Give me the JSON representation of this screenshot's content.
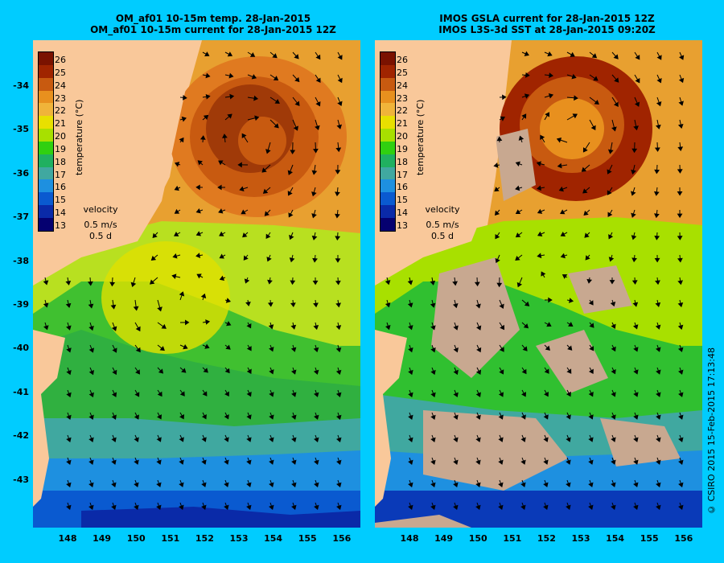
{
  "left_panel": {
    "title_line1": "OM_af01 10-15m temp. 28-Jan-2015",
    "title_line2": "OM_af01 10-15m current for 28-Jan-2015 12Z"
  },
  "right_panel": {
    "title_line1": "IMOS GSLA current for 28-Jan-2015 12Z",
    "title_line2": "IMOS L3S-3d SST at 28-Jan-2015 09:20Z"
  },
  "colorbar": {
    "title": "temperature (°C)",
    "ticks": [
      "26",
      "25",
      "24",
      "23",
      "22",
      "21",
      "20",
      "19",
      "18",
      "17",
      "16",
      "15",
      "14",
      "13"
    ],
    "colors": [
      "#7a1200",
      "#a02400",
      "#c85a10",
      "#e8901e",
      "#f0b43a",
      "#e8e000",
      "#a8e000",
      "#30d010",
      "#20b060",
      "#40a8a0",
      "#1e90e0",
      "#0a5ad0",
      "#0a2aa8",
      "#050070"
    ]
  },
  "velocity_key": {
    "label": "velocity",
    "speed": "0.5 m/s",
    "duration": "0.5 d"
  },
  "axes": {
    "lat_labels": [
      "-34",
      "-35",
      "-36",
      "-37",
      "-38",
      "-39",
      "-40",
      "-41",
      "-42",
      "-43"
    ],
    "lon_labels": [
      "148",
      "149",
      "150",
      "151",
      "152",
      "153",
      "154",
      "155",
      "156"
    ]
  },
  "credit": "© CSIRO 2015   15-Feb-2015 17:13:48"
}
